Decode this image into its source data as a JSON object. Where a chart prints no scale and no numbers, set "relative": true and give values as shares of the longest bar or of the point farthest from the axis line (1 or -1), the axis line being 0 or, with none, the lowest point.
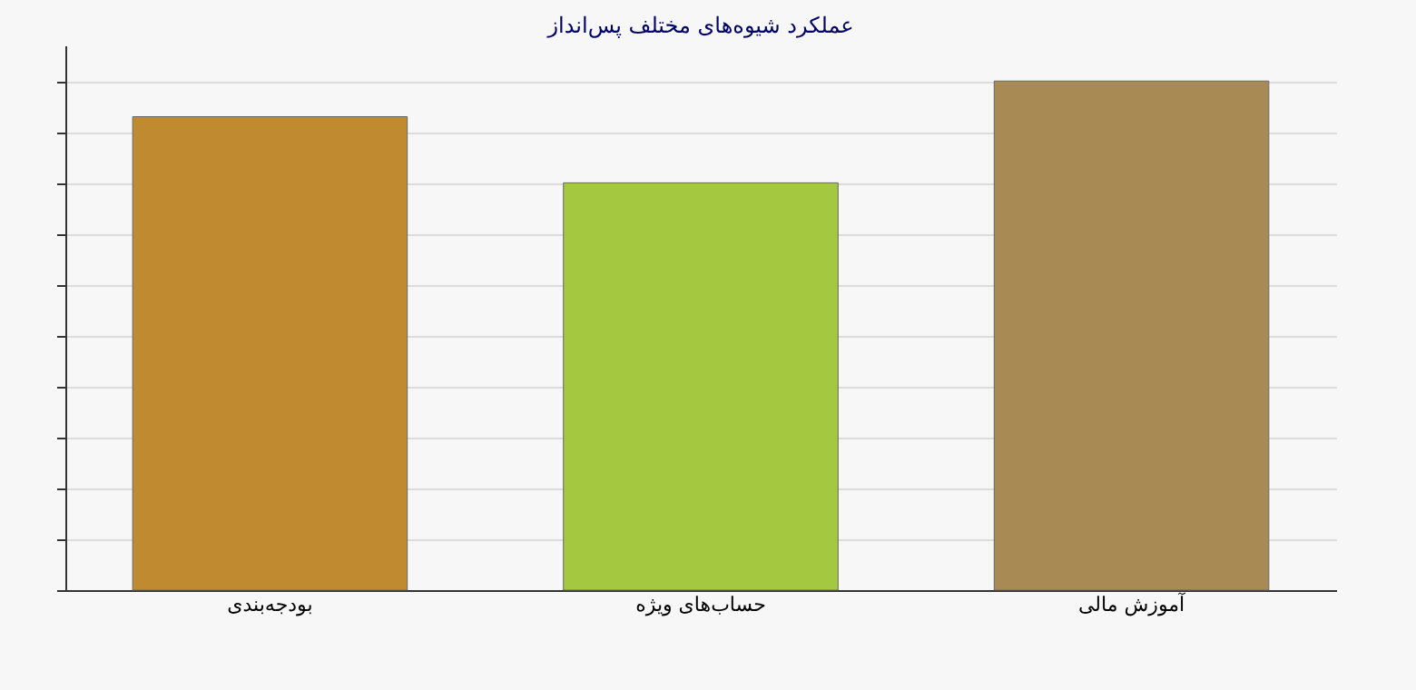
{
  "chart_data": {
    "type": "bar",
    "title": "عملکرد شیوه‌های مختلف پس‌انداز",
    "relative": true,
    "grid": true,
    "categories": [
      "بودجه‌بندی",
      "حساب‌های ویژه",
      "آموزش مالی"
    ],
    "values": [
      0.93,
      0.8,
      1
    ],
    "colors": [
      "#c08a30",
      "#a4c840",
      "#a88a55"
    ]
  }
}
